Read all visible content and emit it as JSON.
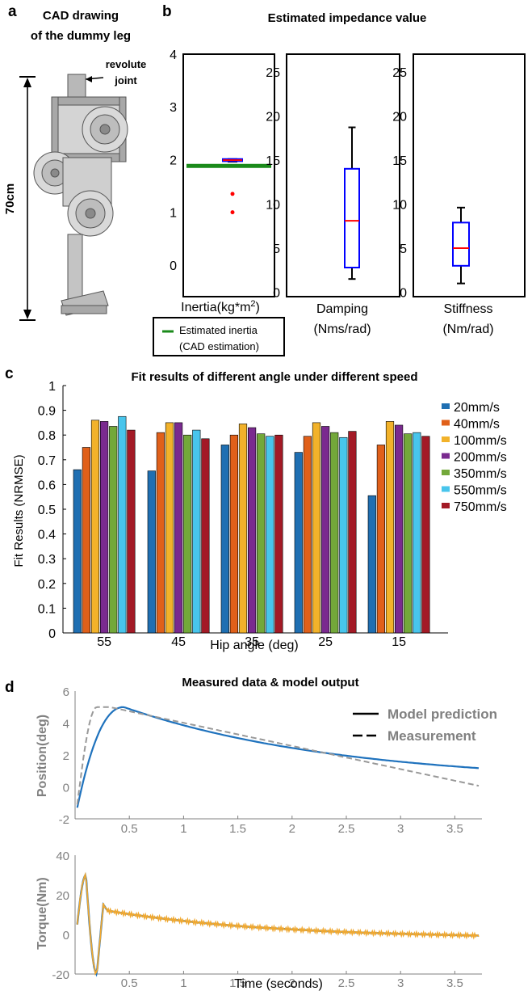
{
  "colors": {
    "box": "#0000ff",
    "median": "#ff0000",
    "whisker": "#000000",
    "outlier": "#ff0000",
    "cad_line": "#1a8a1a",
    "series": [
      "#1f6fb2",
      "#e0601a",
      "#f2b22a",
      "#7a2a8f",
      "#73a83a",
      "#48c5ec",
      "#a31a26"
    ],
    "model": "#1f72bd",
    "measurement": "#999999",
    "torque_model": "#1f72bd",
    "torque_measurement": "#f0a830"
  },
  "panel_a": {
    "letter": "a",
    "title_line1": "CAD drawing",
    "title_line2": "of the dummy leg",
    "joint_label_line1": "revolute",
    "joint_label_line2": "joint",
    "dimension_label": "70cm",
    "icon": "dummy-leg-cad-icon"
  },
  "panel_b": {
    "letter": "b",
    "title": "Estimated impedance value",
    "legend_line1": "Estimated inertia",
    "legend_line2": "(CAD estimation)",
    "inertia": {
      "xlabel": "Inertia(kg*m",
      "xlabel_sup": "2",
      "xlabel_end": ")",
      "ylim": [
        -0.6,
        4
      ],
      "yticks": [
        "0",
        "1",
        "2",
        "3",
        "4"
      ],
      "box": {
        "q1": 1.97,
        "median": 1.99,
        "q3": 2.01,
        "whisker_low": 1.96,
        "whisker_high": 2.01
      },
      "outliers": [
        1.35,
        1.0
      ],
      "cad_estimate": 1.88
    },
    "damping": {
      "xlabel_line1": "Damping",
      "xlabel_line2": "(Nms/rad)",
      "ylim": [
        -0.5,
        27
      ],
      "yticks": [
        "0",
        "5",
        "10",
        "15",
        "20",
        "25"
      ],
      "box": {
        "q1": 2.8,
        "median": 8.1,
        "q3": 14.0,
        "whisker_low": 1.5,
        "whisker_high": 18.7
      }
    },
    "stiffness": {
      "xlabel_line1": "Stiffness",
      "xlabel_line2": "(Nm/rad)",
      "ylim": [
        -0.5,
        27
      ],
      "yticks": [
        "0",
        "5",
        "10",
        "15",
        "20",
        "25"
      ],
      "box": {
        "q1": 3.0,
        "median": 5.0,
        "q3": 7.9,
        "whisker_low": 1.0,
        "whisker_high": 9.6
      }
    }
  },
  "panel_c": {
    "letter": "c",
    "chart_data": {
      "type": "bar",
      "title": "Fit results of different angle under different speed",
      "xlabel": "Hip angle (deg)",
      "ylabel": "Fit Results (NRMSE)",
      "ylim": [
        0,
        1
      ],
      "yticks": [
        "0",
        "0.1",
        "0.2",
        "0.3",
        "0.4",
        "0.5",
        "0.6",
        "0.7",
        "0.8",
        "0.9",
        "1"
      ],
      "categories": [
        "55",
        "45",
        "35",
        "25",
        "15"
      ],
      "legend_position": "right",
      "series": [
        {
          "name": "20mm/s",
          "values": [
            0.66,
            0.655,
            0.76,
            0.73,
            0.555
          ]
        },
        {
          "name": "40mm/s",
          "values": [
            0.75,
            0.81,
            0.8,
            0.795,
            0.76
          ]
        },
        {
          "name": "100mm/s",
          "values": [
            0.86,
            0.85,
            0.845,
            0.85,
            0.855
          ]
        },
        {
          "name": "200mm/s",
          "values": [
            0.855,
            0.85,
            0.83,
            0.835,
            0.84
          ]
        },
        {
          "name": "350mm/s",
          "values": [
            0.835,
            0.8,
            0.805,
            0.81,
            0.805
          ]
        },
        {
          "name": "550mm/s",
          "values": [
            0.875,
            0.82,
            0.795,
            0.79,
            0.81
          ]
        },
        {
          "name": "750mm/s",
          "values": [
            0.82,
            0.785,
            0.8,
            0.815,
            0.795
          ]
        }
      ]
    }
  },
  "panel_d": {
    "letter": "d",
    "title": "Measured data & model output",
    "legend_model": "Model prediction",
    "legend_measurement": "Measurement",
    "position": {
      "ylabel": "Position(deg)",
      "ylim": [
        -2,
        6
      ],
      "xlim": [
        0,
        3.75
      ],
      "yticks": [
        "-2",
        "0",
        "2",
        "4",
        "6"
      ],
      "xticks": [
        "0.5",
        "1",
        "1.5",
        "2",
        "2.5",
        "3",
        "3.5"
      ]
    },
    "torque": {
      "ylabel": "Torque(Nm)",
      "xlabel": "Time (seconds)",
      "ylim": [
        -20,
        40
      ],
      "xlim": [
        0,
        3.75
      ],
      "yticks": [
        "-20",
        "0",
        "20",
        "40"
      ],
      "xticks": [
        "0.5",
        "1",
        "1.5",
        "2",
        "2.5",
        "3",
        "3.5"
      ]
    }
  }
}
